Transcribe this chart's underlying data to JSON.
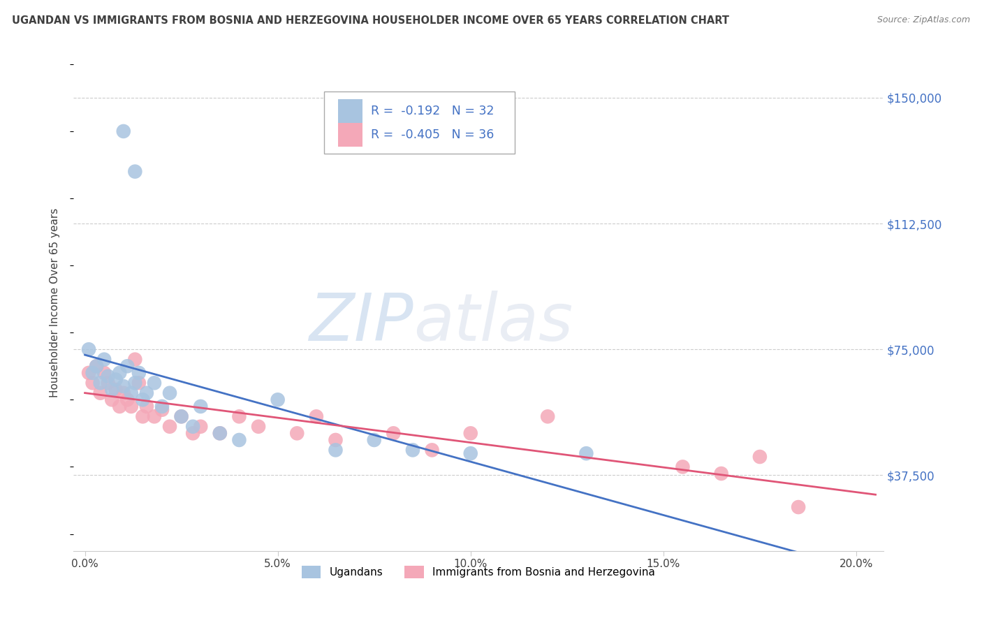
{
  "title": "UGANDAN VS IMMIGRANTS FROM BOSNIA AND HERZEGOVINA HOUSEHOLDER INCOME OVER 65 YEARS CORRELATION CHART",
  "source": "Source: ZipAtlas.com",
  "ylabel": "Householder Income Over 65 years",
  "xlabel_ticks": [
    "0.0%",
    "5.0%",
    "10.0%",
    "15.0%",
    "20.0%"
  ],
  "xlabel_vals": [
    0.0,
    0.05,
    0.1,
    0.15,
    0.2
  ],
  "ytick_labels": [
    "$37,500",
    "$75,000",
    "$112,500",
    "$150,000"
  ],
  "ytick_vals": [
    37500,
    75000,
    112500,
    150000
  ],
  "legend_label1": "Ugandans",
  "legend_label2": "Immigrants from Bosnia and Herzegovina",
  "R1": -0.192,
  "N1": 32,
  "R2": -0.405,
  "N2": 36,
  "color1": "#a8c4e0",
  "color2": "#f4a8b8",
  "line_color1": "#4472c4",
  "line_color2": "#e05577",
  "watermark_zip": "ZIP",
  "watermark_atlas": "atlas",
  "title_color": "#404040",
  "source_color": "#808080",
  "axis_label_color": "#404040",
  "tick_color_x": "#404040",
  "tick_color_y": "#2255cc",
  "ugandan_x": [
    0.001,
    0.002,
    0.003,
    0.004,
    0.005,
    0.006,
    0.007,
    0.008,
    0.009,
    0.01,
    0.011,
    0.012,
    0.013,
    0.014,
    0.015,
    0.016,
    0.018,
    0.02,
    0.022,
    0.025,
    0.028,
    0.03,
    0.035,
    0.04,
    0.05,
    0.065,
    0.075,
    0.085,
    0.1,
    0.13,
    0.01,
    0.013
  ],
  "ugandan_y": [
    75000,
    68000,
    70000,
    65000,
    72000,
    67000,
    63000,
    66000,
    68000,
    64000,
    70000,
    62000,
    65000,
    68000,
    60000,
    62000,
    65000,
    58000,
    62000,
    55000,
    52000,
    58000,
    50000,
    48000,
    60000,
    45000,
    48000,
    45000,
    44000,
    44000,
    140000,
    128000
  ],
  "bosnia_x": [
    0.001,
    0.002,
    0.003,
    0.004,
    0.005,
    0.006,
    0.007,
    0.008,
    0.009,
    0.01,
    0.011,
    0.012,
    0.013,
    0.014,
    0.015,
    0.016,
    0.018,
    0.02,
    0.022,
    0.025,
    0.028,
    0.03,
    0.035,
    0.04,
    0.045,
    0.055,
    0.06,
    0.065,
    0.08,
    0.09,
    0.1,
    0.12,
    0.155,
    0.165,
    0.175,
    0.185
  ],
  "bosnia_y": [
    68000,
    65000,
    70000,
    62000,
    68000,
    65000,
    60000,
    63000,
    58000,
    62000,
    60000,
    58000,
    72000,
    65000,
    55000,
    58000,
    55000,
    57000,
    52000,
    55000,
    50000,
    52000,
    50000,
    55000,
    52000,
    50000,
    55000,
    48000,
    50000,
    45000,
    50000,
    55000,
    40000,
    38000,
    43000,
    28000
  ]
}
